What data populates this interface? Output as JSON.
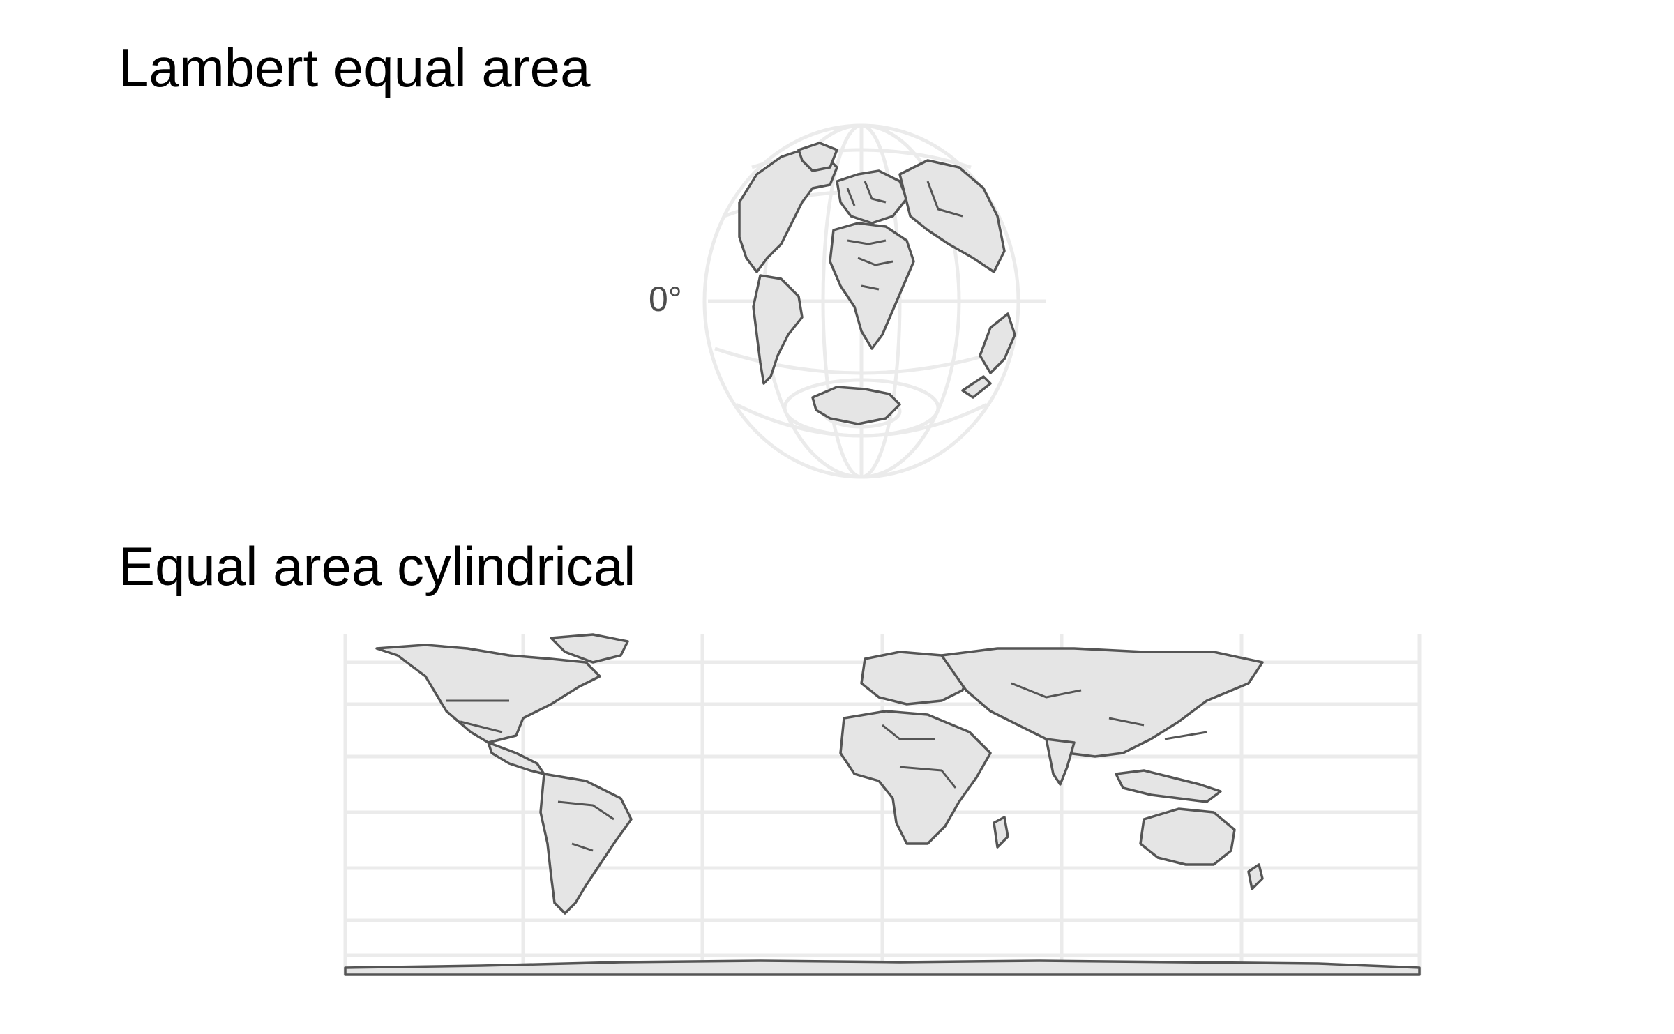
{
  "panels": [
    {
      "title": "Lambert equal area",
      "projection": "Lambert azimuthal equal-area",
      "axis_labels": [
        "0°"
      ]
    },
    {
      "title": "Equal area cylindrical",
      "projection": "Equal area cylindrical",
      "axis_labels": []
    }
  ],
  "colors": {
    "land_fill": "#e5e5e5",
    "land_outline": "#555555",
    "graticule": "#ebebeb",
    "background": "#ffffff",
    "axis_text": "#4d4d4d"
  }
}
